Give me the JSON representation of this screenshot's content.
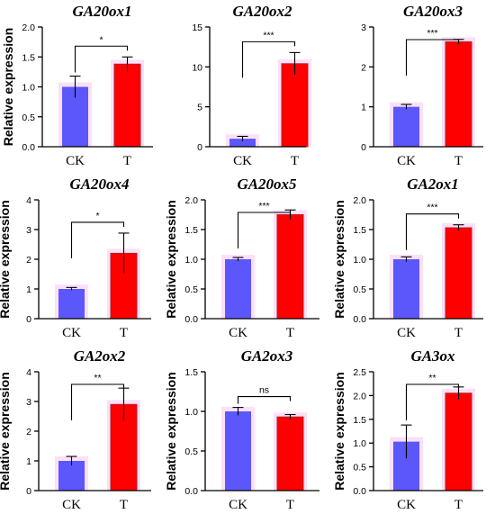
{
  "colors": {
    "ck": "#5b57fb",
    "t": "#ff0000",
    "t_stroke": "#b2222a",
    "axis": "#000000",
    "halo": "#f7c6f2"
  },
  "chart_data": [
    {
      "type": "bar",
      "title": "GA20ox1",
      "ylabel": "Relative expression",
      "categories": [
        "CK",
        "T"
      ],
      "values": [
        1.0,
        1.38
      ],
      "errors": [
        0.18,
        0.12
      ],
      "ylim": [
        0,
        2.0
      ],
      "yticks": [
        "0.0",
        "0.5",
        "1.0",
        "1.5",
        "2.0"
      ],
      "significance": "*"
    },
    {
      "type": "bar",
      "title": "GA20ox2",
      "ylabel": "",
      "categories": [
        "CK",
        "T"
      ],
      "values": [
        1.0,
        10.4
      ],
      "errors": [
        0.3,
        1.4
      ],
      "ylim": [
        0,
        15
      ],
      "yticks": [
        "0",
        "5",
        "10",
        "15"
      ],
      "significance": "***"
    },
    {
      "type": "bar",
      "title": "GA20ox3",
      "ylabel": "",
      "categories": [
        "CK",
        "T"
      ],
      "values": [
        1.0,
        2.63
      ],
      "errors": [
        0.06,
        0.06
      ],
      "ylim": [
        0,
        3
      ],
      "yticks": [
        "0",
        "1",
        "2",
        "3"
      ],
      "significance": "***"
    },
    {
      "type": "bar",
      "title": "GA20ox4",
      "ylabel": "Relative expression",
      "categories": [
        "CK",
        "T"
      ],
      "values": [
        1.0,
        2.2
      ],
      "errors": [
        0.05,
        0.68
      ],
      "ylim": [
        0,
        4
      ],
      "yticks": [
        "0",
        "1",
        "2",
        "3",
        "4"
      ],
      "significance": "*"
    },
    {
      "type": "bar",
      "title": "GA20ox5",
      "ylabel": "Relative expression",
      "categories": [
        "CK",
        "T"
      ],
      "values": [
        1.0,
        1.75
      ],
      "errors": [
        0.03,
        0.08
      ],
      "ylim": [
        0,
        2.0
      ],
      "yticks": [
        "0.0",
        "0.5",
        "1.0",
        "1.5",
        "2.0"
      ],
      "significance": "***"
    },
    {
      "type": "bar",
      "title": "GA2ox1",
      "ylabel": "Relative expression",
      "categories": [
        "CK",
        "T"
      ],
      "values": [
        1.0,
        1.53
      ],
      "errors": [
        0.04,
        0.05
      ],
      "ylim": [
        0,
        2.0
      ],
      "yticks": [
        "0.0",
        "0.5",
        "1.0",
        "1.5",
        "2.0"
      ],
      "significance": "***"
    },
    {
      "type": "bar",
      "title": "GA2ox2",
      "ylabel": "Relative expression",
      "categories": [
        "CK",
        "T"
      ],
      "values": [
        1.0,
        2.9
      ],
      "errors": [
        0.15,
        0.55
      ],
      "ylim": [
        0,
        4
      ],
      "yticks": [
        "0",
        "1",
        "2",
        "3",
        "4"
      ],
      "significance": "**"
    },
    {
      "type": "bar",
      "title": "GA2ox3",
      "ylabel": "Relative expression",
      "categories": [
        "CK",
        "T"
      ],
      "values": [
        1.0,
        0.93
      ],
      "errors": [
        0.05,
        0.03
      ],
      "ylim": [
        0,
        1.5
      ],
      "yticks": [
        "0.0",
        "0.5",
        "1.0",
        "1.5"
      ],
      "significance": "ns"
    },
    {
      "type": "bar",
      "title": "GA3ox",
      "ylabel": "Relative expression",
      "categories": [
        "CK",
        "T"
      ],
      "values": [
        1.03,
        2.05
      ],
      "errors": [
        0.35,
        0.13
      ],
      "ylim": [
        0,
        2.5
      ],
      "yticks": [
        "0.0",
        "0.5",
        "1.0",
        "1.5",
        "2.0",
        "2.5"
      ],
      "significance": "**"
    }
  ]
}
